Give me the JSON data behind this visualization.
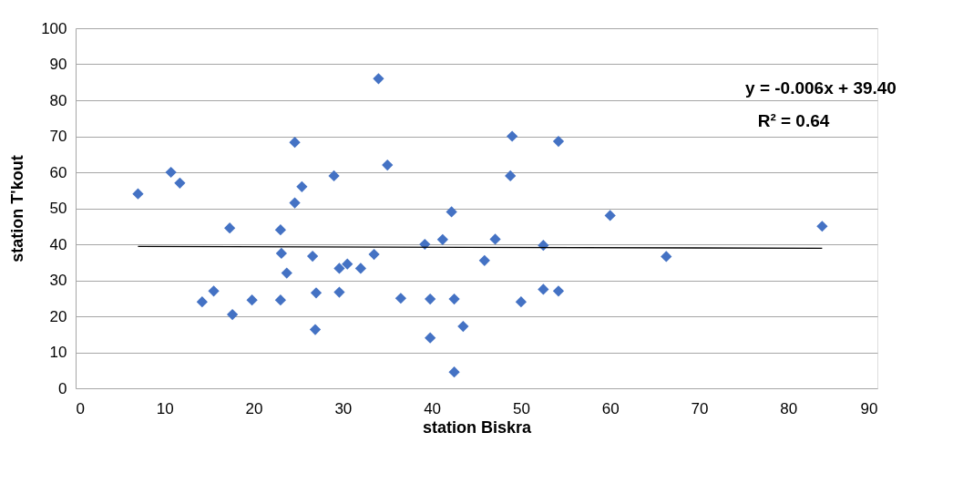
{
  "chart_data": {
    "type": "scatter",
    "xlabel": "station Biskra",
    "ylabel": "station T'kout",
    "xlim": [
      0,
      90
    ],
    "xticks": [
      0,
      10,
      20,
      30,
      40,
      50,
      60,
      70,
      80,
      90
    ],
    "ylim": [
      0,
      100
    ],
    "yticks": [
      0,
      10,
      20,
      30,
      40,
      50,
      60,
      70,
      80,
      90,
      100
    ],
    "grid": "y",
    "marker": "diamond",
    "series": [
      {
        "color": "#4472c4",
        "x": [
          7,
          10.7,
          11.7,
          14.2,
          15.5,
          17.3,
          17.6,
          19.8,
          23,
          23.1,
          23,
          23.7,
          24.6,
          24.6,
          25.4,
          26.6,
          26.9,
          27,
          29,
          29.6,
          29.6,
          30.5,
          32,
          33.5,
          34,
          35,
          36.5,
          39.2,
          39.8,
          39.8,
          41.2,
          42.2,
          42.5,
          42.5,
          43.5,
          45.9,
          47.1,
          48.8,
          49,
          50,
          52.5,
          52.5,
          54.2,
          54.2,
          60,
          66.3,
          83.8
        ],
        "values": [
          54,
          60,
          57,
          24,
          27,
          44.5,
          20.5,
          24.5,
          44,
          37.5,
          24.5,
          32,
          51.5,
          68.3,
          56,
          36.7,
          16.3,
          26.5,
          59,
          26.7,
          33.3,
          34.5,
          33.3,
          37.2,
          86,
          62,
          25,
          40,
          24.8,
          14,
          41.3,
          49,
          4.5,
          24.8,
          17.2,
          35.5,
          41.4,
          59,
          70,
          24,
          27.5,
          39.7,
          68.6,
          27,
          48,
          36.6,
          45
        ]
      },
      {
        "type": "line",
        "marker": "none",
        "color": "#000000",
        "x": [
          7,
          83.8
        ],
        "values": [
          39.4,
          38.9
        ]
      }
    ],
    "annotations": [
      "y = -0.006x + 39.40",
      "R² = 0.64"
    ]
  }
}
